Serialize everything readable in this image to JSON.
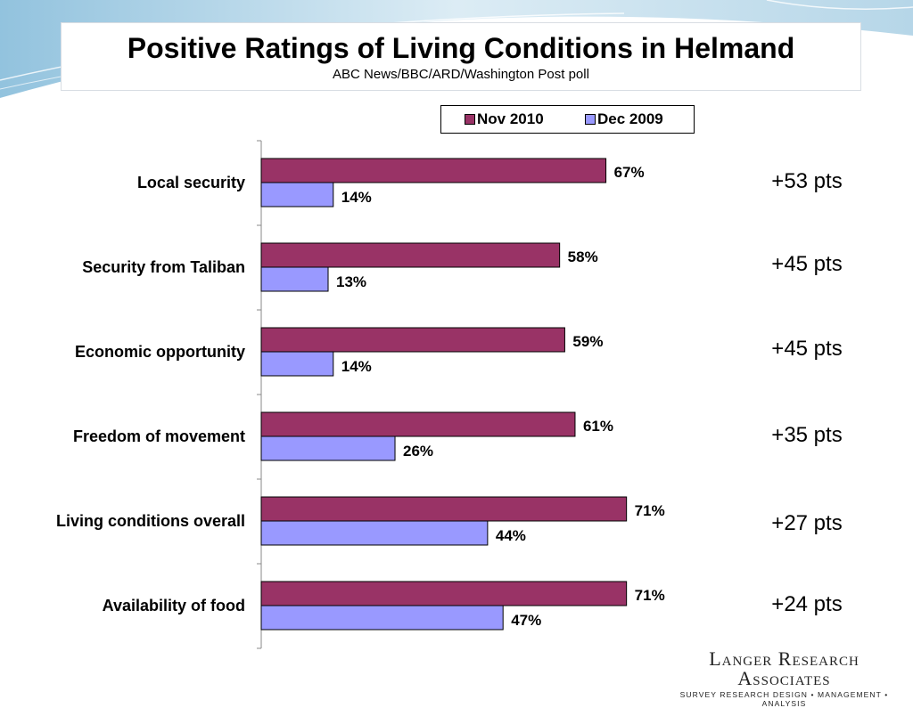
{
  "header": {
    "title": "Positive Ratings of Living Conditions in Helmand",
    "subtitle": "ABC News/BBC/ARD/Washington Post poll"
  },
  "legend": {
    "position": "top-right",
    "items": [
      {
        "label": "Nov 2010",
        "color": "#993366"
      },
      {
        "label": "Dec 2009",
        "color": "#9999ff"
      }
    ]
  },
  "chart_data": {
    "type": "bar",
    "orientation": "horizontal",
    "title": "Positive Ratings of Living Conditions in Helmand",
    "subtitle": "ABC News/BBC/ARD/Washington Post poll",
    "categories": [
      "Local security",
      "Security from Taliban",
      "Economic opportunity",
      "Freedom of movement",
      "Living conditions overall",
      "Availability of food"
    ],
    "series": [
      {
        "name": "Nov 2010",
        "color": "#993366",
        "values": [
          67,
          58,
          59,
          61,
          71,
          71
        ],
        "labels": [
          "67%",
          "58%",
          "59%",
          "61%",
          "71%",
          "71%"
        ]
      },
      {
        "name": "Dec 2009",
        "color": "#9999ff",
        "values": [
          14,
          13,
          14,
          26,
          44,
          47
        ],
        "labels": [
          "14%",
          "13%",
          "14%",
          "26%",
          "44%",
          "47%"
        ]
      }
    ],
    "changes": [
      "+53 pts",
      "+45 pts",
      "+45 pts",
      "+35 pts",
      "+27 pts",
      "+24 pts"
    ],
    "xlim": [
      0,
      100
    ],
    "xlabel": "",
    "ylabel": "",
    "grid": false
  },
  "branding": {
    "name": "Langer Research Associates",
    "tagline": "SURVEY RESEARCH DESIGN • MANAGEMENT • ANALYSIS"
  }
}
